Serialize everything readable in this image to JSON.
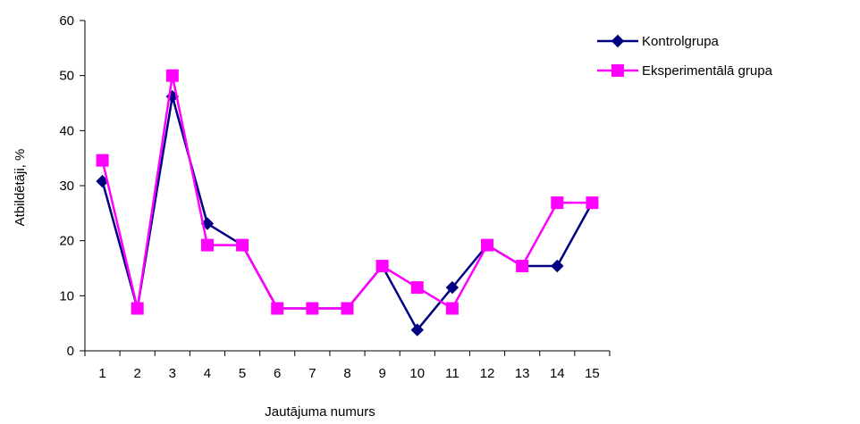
{
  "chart_data": {
    "type": "line",
    "title": "",
    "xlabel": "Jautājuma numurs",
    "ylabel": "Atbildētāji, %",
    "categories": [
      "1",
      "2",
      "3",
      "4",
      "5",
      "6",
      "7",
      "8",
      "9",
      "10",
      "11",
      "12",
      "13",
      "14",
      "15"
    ],
    "ylim": [
      0,
      60
    ],
    "yticks": [
      "0",
      "10",
      "20",
      "30",
      "40",
      "50",
      "60"
    ],
    "grid": false,
    "legend_position": "top-right",
    "series": [
      {
        "name": "Kontrolgrupa",
        "color": "#000080",
        "marker": "diamond",
        "values": [
          30.8,
          7.7,
          46.2,
          23.1,
          19.2,
          7.7,
          7.7,
          7.7,
          15.4,
          3.8,
          11.5,
          19.2,
          15.4,
          15.4,
          26.9
        ]
      },
      {
        "name": "Eksperimentālā grupa",
        "color": "#ff00ff",
        "marker": "square",
        "values": [
          34.6,
          7.7,
          50.0,
          19.2,
          19.2,
          7.7,
          7.7,
          7.7,
          15.4,
          11.5,
          7.7,
          19.2,
          15.4,
          26.9,
          26.9
        ]
      }
    ]
  }
}
